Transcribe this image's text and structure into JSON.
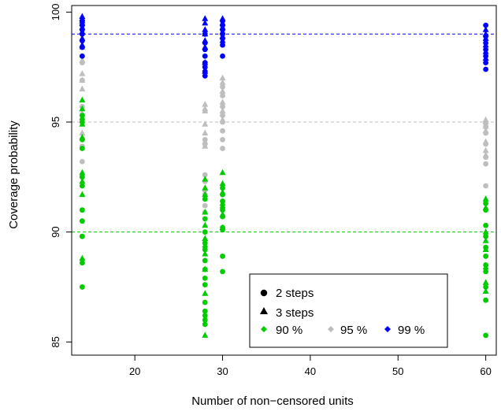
{
  "chart_data": {
    "type": "scatter",
    "title": "",
    "xlabel": "Number of non−censored units",
    "ylabel": "Coverage probability",
    "xlim": [
      12.8,
      61.2
    ],
    "ylim": [
      84.4,
      100.3
    ],
    "xticks": [
      20,
      30,
      40,
      50,
      60
    ],
    "yticks": [
      85,
      90,
      95,
      100
    ],
    "grid": false,
    "legend_position": "bottom-right",
    "reference_lines": [
      {
        "y": 90,
        "color": "#00cc00",
        "style": "dashed"
      },
      {
        "y": 95,
        "color": "#bebebe",
        "style": "dashed"
      },
      {
        "y": 99,
        "color": "#0000ff",
        "style": "dashed"
      }
    ],
    "legend": {
      "shapes": [
        {
          "label": "2 steps",
          "shape": "circle"
        },
        {
          "label": "3 steps",
          "shape": "triangle"
        }
      ],
      "levels": [
        {
          "label": "90 %",
          "color": "#00cc00"
        },
        {
          "label": "95 %",
          "color": "#bebebe"
        },
        {
          "label": "99 %",
          "color": "#0000ff"
        }
      ]
    },
    "series": [
      {
        "level": "90 %",
        "steps": 2,
        "x": 14,
        "values": [
          87.5,
          88.6,
          89.8,
          90.5,
          91.0,
          92.1,
          92.5,
          93.8,
          94.2,
          95.0,
          95.3
        ]
      },
      {
        "level": "90 %",
        "steps": 3,
        "x": 14,
        "values": [
          88.8,
          91.7,
          92.3,
          92.7,
          94.3,
          94.9,
          95.2,
          95.6,
          96.0
        ]
      },
      {
        "level": "95 %",
        "steps": 2,
        "x": 14,
        "values": [
          92.6,
          93.2,
          93.9,
          95.1,
          95.7,
          96.9,
          97.7,
          98.0
        ]
      },
      {
        "level": "95 %",
        "steps": 3,
        "x": 14,
        "values": [
          94.5,
          95.4,
          96.5,
          96.9,
          97.2,
          97.8,
          98.4
        ]
      },
      {
        "level": "99 %",
        "steps": 2,
        "x": 14,
        "values": [
          98.0,
          98.4,
          98.7,
          99.0,
          99.2,
          99.4,
          99.6
        ]
      },
      {
        "level": "99 %",
        "steps": 3,
        "x": 14,
        "values": [
          98.5,
          98.8,
          99.1,
          99.3,
          99.5,
          99.6,
          99.7,
          99.8
        ]
      },
      {
        "level": "90 %",
        "steps": 2,
        "x": 28,
        "values": [
          85.8,
          86.0,
          86.2,
          86.4,
          86.8,
          87.6,
          87.9,
          88.3,
          88.7,
          89.2,
          89.5,
          90.0,
          90.6,
          91.5
        ]
      },
      {
        "level": "90 %",
        "steps": 3,
        "x": 28,
        "values": [
          85.3,
          87.2,
          88.3,
          89.0,
          89.4,
          89.7,
          90.3,
          90.9,
          91.7,
          92.0,
          92.4
        ]
      },
      {
        "level": "95 %",
        "steps": 2,
        "x": 28,
        "values": [
          90.9,
          91.2,
          91.5,
          91.7,
          91.9,
          92.3,
          92.6,
          94.0,
          94.2
        ]
      },
      {
        "level": "95 %",
        "steps": 3,
        "x": 28,
        "values": [
          93.9,
          94.1,
          94.5,
          94.9,
          95.5,
          95.6,
          95.8
        ]
      },
      {
        "level": "99 %",
        "steps": 2,
        "x": 28,
        "values": [
          97.1,
          97.3,
          97.5,
          97.7,
          98.0,
          98.3,
          98.6,
          99.0
        ]
      },
      {
        "level": "99 %",
        "steps": 3,
        "x": 28,
        "values": [
          97.3,
          97.7,
          98.4,
          98.7,
          99.0,
          99.2,
          99.5,
          99.7
        ]
      },
      {
        "level": "90 %",
        "steps": 2,
        "x": 30,
        "values": [
          88.2,
          88.9,
          90.1,
          90.2,
          90.7,
          91.0,
          91.1,
          91.4,
          91.7,
          92.0
        ]
      },
      {
        "level": "90 %",
        "steps": 3,
        "x": 30,
        "values": [
          90.2,
          90.8,
          91.3,
          91.8,
          92.2,
          92.7
        ]
      },
      {
        "level": "95 %",
        "steps": 2,
        "x": 30,
        "values": [
          93.8,
          94.2,
          94.6,
          95.0,
          95.3,
          95.7,
          96.2,
          96.6
        ]
      },
      {
        "level": "95 %",
        "steps": 3,
        "x": 30,
        "values": [
          95.1,
          95.5,
          95.9,
          96.4,
          96.8,
          97.0
        ]
      },
      {
        "level": "99 %",
        "steps": 2,
        "x": 30,
        "values": [
          98.0,
          98.5,
          98.8,
          99.0,
          99.2,
          99.4,
          99.6
        ]
      },
      {
        "level": "99 %",
        "steps": 3,
        "x": 30,
        "values": [
          98.7,
          98.9,
          99.1,
          99.3,
          99.5,
          99.7
        ]
      },
      {
        "level": "90 %",
        "steps": 2,
        "x": 60,
        "values": [
          85.3,
          86.9,
          87.5,
          88.2,
          88.5,
          88.9,
          89.3,
          89.8,
          90.3,
          91.0,
          91.3
        ]
      },
      {
        "level": "90 %",
        "steps": 3,
        "x": 60,
        "values": [
          87.3,
          87.7,
          88.4,
          89.2,
          89.6,
          90.0,
          91.1,
          91.5
        ]
      },
      {
        "level": "95 %",
        "steps": 2,
        "x": 60,
        "values": [
          92.1,
          93.1,
          93.4,
          94.0,
          94.5,
          94.8,
          95.0
        ]
      },
      {
        "level": "95 %",
        "steps": 3,
        "x": 60,
        "values": [
          93.5,
          93.7,
          94.1,
          94.6,
          94.8,
          95.0,
          95.1
        ]
      },
      {
        "level": "99 %",
        "steps": 2,
        "x": 60,
        "values": [
          97.4,
          97.7,
          98.0,
          98.3,
          98.6,
          98.9,
          99.4
        ]
      },
      {
        "level": "99 %",
        "steps": 3,
        "x": 60,
        "values": [
          97.9,
          98.2,
          98.5,
          98.8,
          99.0,
          99.2
        ]
      }
    ]
  }
}
